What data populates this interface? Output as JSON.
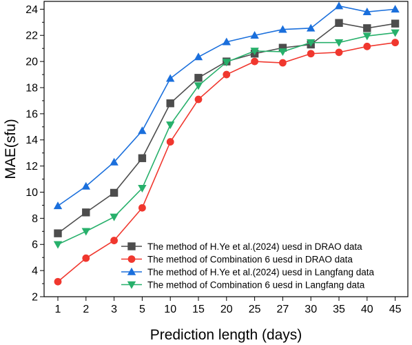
{
  "chart_data": {
    "type": "line",
    "title": "",
    "xlabel": "Prediction length (days)",
    "ylabel": "MAE(sfu)",
    "categories": [
      "1",
      "2",
      "3",
      "5",
      "10",
      "15",
      "20",
      "25",
      "27",
      "30",
      "35",
      "40",
      "45"
    ],
    "ylim": [
      2,
      24.6
    ],
    "yticks": [
      2,
      4,
      6,
      8,
      10,
      12,
      14,
      16,
      18,
      20,
      22,
      24
    ],
    "grid": false,
    "legend_position": "bottom-right",
    "series": [
      {
        "name": "The method of H.Ye et al.(2024) uesd in DRAO data",
        "color": "#4d4d4d",
        "marker": "square",
        "values": [
          6.85,
          8.45,
          9.95,
          12.6,
          16.8,
          18.75,
          20.0,
          20.6,
          21.05,
          21.3,
          22.95,
          22.55,
          22.9
        ]
      },
      {
        "name": "The method of Combination 6 uesd in DRAO data",
        "color": "#f0372e",
        "marker": "circle",
        "values": [
          3.15,
          4.95,
          6.3,
          8.8,
          13.85,
          17.1,
          19.0,
          20.0,
          19.9,
          20.6,
          20.7,
          21.15,
          21.45
        ]
      },
      {
        "name": "The method of H.Ye et al.(2024) uesd in Langfang data",
        "color": "#1a6fdc",
        "marker": "triangle-up",
        "values": [
          8.95,
          10.45,
          12.3,
          14.7,
          18.7,
          20.35,
          21.5,
          22.0,
          22.45,
          22.55,
          24.25,
          23.8,
          24.0
        ]
      },
      {
        "name": "The method of Combination 6 uesd in Langfang data",
        "color": "#27b06b",
        "marker": "triangle-down",
        "values": [
          6.0,
          7.0,
          8.1,
          10.3,
          15.15,
          18.15,
          19.95,
          20.8,
          20.75,
          21.45,
          21.45,
          21.95,
          22.2
        ]
      }
    ]
  }
}
